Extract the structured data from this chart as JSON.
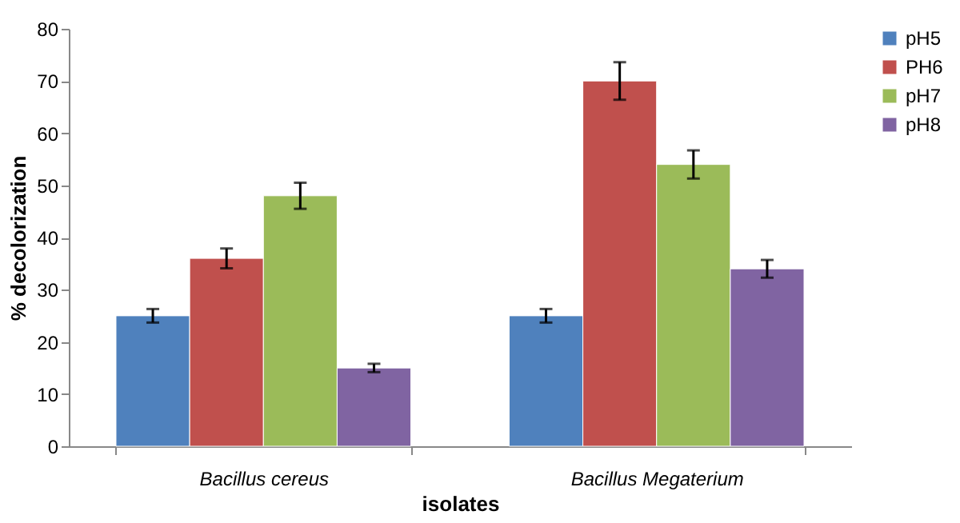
{
  "chart_data": {
    "type": "bar",
    "xlabel": "isolates",
    "ylabel": "% decolorization",
    "categories": [
      "Bacillus cereus",
      "Bacillus Megaterium"
    ],
    "series": [
      {
        "name": "pH5",
        "color": "#4f81bd",
        "values": [
          25,
          25
        ],
        "errors": [
          1.3,
          1.3
        ]
      },
      {
        "name": "PH6",
        "color": "#c0504d",
        "values": [
          36,
          70
        ],
        "errors": [
          1.9,
          3.6
        ]
      },
      {
        "name": "pH7",
        "color": "#9bbb59",
        "values": [
          48,
          54
        ],
        "errors": [
          2.5,
          2.7
        ]
      },
      {
        "name": "pH8",
        "color": "#8064a2",
        "values": [
          15,
          34
        ],
        "errors": [
          0.8,
          1.7
        ]
      }
    ],
    "ylim": [
      0,
      80
    ],
    "yticks": [
      0,
      10,
      20,
      30,
      40,
      50,
      60,
      70,
      80
    ],
    "grid": false,
    "legend": "right"
  }
}
